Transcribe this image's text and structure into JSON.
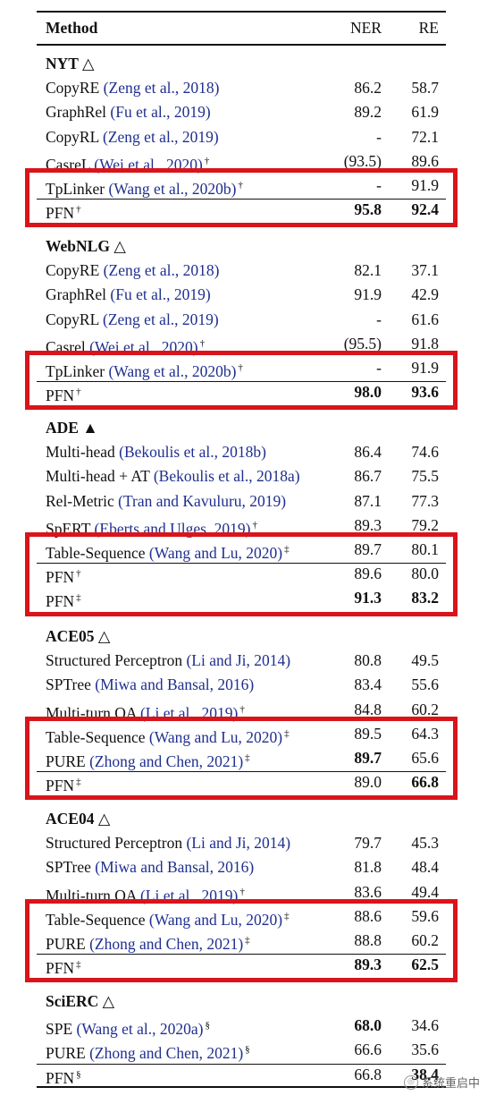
{
  "header": {
    "method": "Method",
    "ner": "NER",
    "re": "RE"
  },
  "sections": [
    {
      "title": "NYT",
      "marker": "△",
      "rows": [
        {
          "pre": "CopyRE",
          "cite": "(Zeng et al., 2018)",
          "sup": "",
          "ner": "86.2",
          "re": "58.7",
          "ner_bold": false,
          "re_bold": false
        },
        {
          "pre": "GraphRel",
          "cite": "(Fu et al., 2019)",
          "sup": "",
          "ner": "89.2",
          "re": "61.9",
          "ner_bold": false,
          "re_bold": false
        },
        {
          "pre": "CopyRL",
          "cite": "(Zeng et al., 2019)",
          "sup": "",
          "ner": "-",
          "re": "72.1",
          "ner_bold": false,
          "re_bold": false
        },
        {
          "pre": "CasreL",
          "cite": "(Wei et al., 2020)",
          "sup": "†",
          "ner": "(93.5)",
          "re": "89.6",
          "ner_bold": false,
          "re_bold": false
        },
        {
          "pre": "TpLinker",
          "cite": "(Wang et al., 2020b)",
          "sup": "†",
          "ner": "-",
          "re": "91.9",
          "ner_bold": false,
          "re_bold": false
        },
        {
          "pre": "PFN",
          "cite": "",
          "sup": "†",
          "ner": "95.8",
          "re": "92.4",
          "ner_bold": true,
          "re_bold": true
        }
      ]
    },
    {
      "title": "WebNLG",
      "marker": "△",
      "rows": [
        {
          "pre": "CopyRE",
          "cite": "(Zeng et al., 2018)",
          "sup": "",
          "ner": "82.1",
          "re": "37.1",
          "ner_bold": false,
          "re_bold": false
        },
        {
          "pre": "GraphRel",
          "cite": "(Fu et al., 2019)",
          "sup": "",
          "ner": "91.9",
          "re": "42.9",
          "ner_bold": false,
          "re_bold": false
        },
        {
          "pre": "CopyRL",
          "cite": "(Zeng et al., 2019)",
          "sup": "",
          "ner": "-",
          "re": "61.6",
          "ner_bold": false,
          "re_bold": false
        },
        {
          "pre": "Casrel",
          "cite": "(Wei et al., 2020)",
          "sup": "†",
          "ner": "(95.5)",
          "re": "91.8",
          "ner_bold": false,
          "re_bold": false
        },
        {
          "pre": "TpLinker",
          "cite": "(Wang et al., 2020b)",
          "sup": "†",
          "ner": "-",
          "re": "91.9",
          "ner_bold": false,
          "re_bold": false
        },
        {
          "pre": "PFN",
          "cite": "",
          "sup": "†",
          "ner": "98.0",
          "re": "93.6",
          "ner_bold": true,
          "re_bold": true
        }
      ]
    },
    {
      "title": "ADE",
      "marker": "▲",
      "rows": [
        {
          "pre": "Multi-head",
          "cite": "(Bekoulis et al., 2018b)",
          "sup": "",
          "ner": "86.4",
          "re": "74.6",
          "ner_bold": false,
          "re_bold": false
        },
        {
          "pre": "Multi-head + AT",
          "cite": "(Bekoulis et al., 2018a)",
          "sup": "",
          "ner": "86.7",
          "re": "75.5",
          "ner_bold": false,
          "re_bold": false
        },
        {
          "pre": "Rel-Metric",
          "cite": "(Tran and Kavuluru, 2019)",
          "sup": "",
          "ner": "87.1",
          "re": "77.3",
          "ner_bold": false,
          "re_bold": false
        },
        {
          "pre": "SpERT",
          "cite": "(Eberts and Ulges, 2019)",
          "sup": "†",
          "ner": "89.3",
          "re": "79.2",
          "ner_bold": false,
          "re_bold": false
        },
        {
          "pre": "Table-Sequence",
          "cite": "(Wang and Lu, 2020)",
          "sup": "‡",
          "ner": "89.7",
          "re": "80.1",
          "ner_bold": false,
          "re_bold": false
        },
        {
          "pre": "PFN",
          "cite": "",
          "sup": "†",
          "ner": "89.6",
          "re": "80.0",
          "ner_bold": false,
          "re_bold": false
        },
        {
          "pre": "PFN",
          "cite": "",
          "sup": "‡",
          "ner": "91.3",
          "re": "83.2",
          "ner_bold": true,
          "re_bold": true
        }
      ]
    },
    {
      "title": "ACE05",
      "marker": "△",
      "rows": [
        {
          "pre": "Structured Perceptron",
          "cite": "(Li and Ji, 2014)",
          "sup": "",
          "ner": "80.8",
          "re": "49.5",
          "ner_bold": false,
          "re_bold": false
        },
        {
          "pre": "SPTree",
          "cite": "(Miwa and Bansal, 2016)",
          "sup": "",
          "ner": "83.4",
          "re": "55.6",
          "ner_bold": false,
          "re_bold": false
        },
        {
          "pre": "Multi-turn QA",
          "cite": "(Li et al., 2019)",
          "sup": "†",
          "ner": "84.8",
          "re": "60.2",
          "ner_bold": false,
          "re_bold": false
        },
        {
          "pre": "Table-Sequence",
          "cite": "(Wang and Lu, 2020)",
          "sup": "‡",
          "ner": "89.5",
          "re": "64.3",
          "ner_bold": false,
          "re_bold": false
        },
        {
          "pre": "PURE",
          "cite": "(Zhong and Chen, 2021)",
          "sup": "‡",
          "ner": "89.7",
          "re": "65.6",
          "ner_bold": true,
          "re_bold": false
        },
        {
          "pre": "PFN",
          "cite": "",
          "sup": "‡",
          "ner": "89.0",
          "re": "66.8",
          "ner_bold": false,
          "re_bold": true
        }
      ]
    },
    {
      "title": "ACE04",
      "marker": "△",
      "rows": [
        {
          "pre": "Structured Perceptron",
          "cite": "(Li and Ji, 2014)",
          "sup": "",
          "ner": "79.7",
          "re": "45.3",
          "ner_bold": false,
          "re_bold": false
        },
        {
          "pre": "SPTree",
          "cite": "(Miwa and Bansal, 2016)",
          "sup": "",
          "ner": "81.8",
          "re": "48.4",
          "ner_bold": false,
          "re_bold": false
        },
        {
          "pre": "Multi-turn QA",
          "cite": "(Li et al., 2019)",
          "sup": "†",
          "ner": "83.6",
          "re": "49.4",
          "ner_bold": false,
          "re_bold": false
        },
        {
          "pre": "Table-Sequence",
          "cite": "(Wang and Lu, 2020)",
          "sup": "‡",
          "ner": "88.6",
          "re": "59.6",
          "ner_bold": false,
          "re_bold": false
        },
        {
          "pre": "PURE",
          "cite": "(Zhong and Chen, 2021)",
          "sup": "‡",
          "ner": "88.8",
          "re": "60.2",
          "ner_bold": false,
          "re_bold": false
        },
        {
          "pre": "PFN",
          "cite": "",
          "sup": "‡",
          "ner": "89.3",
          "re": "62.5",
          "ner_bold": true,
          "re_bold": true
        }
      ]
    },
    {
      "title": "SciERC",
      "marker": "△",
      "rows": [
        {
          "pre": "SPE",
          "cite": "(Wang et al., 2020a)",
          "sup": "§",
          "ner": "68.0",
          "re": "34.6",
          "ner_bold": true,
          "re_bold": false
        },
        {
          "pre": "PURE",
          "cite": "(Zhong and Chen, 2021)",
          "sup": "§",
          "ner": "66.6",
          "re": "35.6",
          "ner_bold": false,
          "re_bold": false
        },
        {
          "pre": "PFN",
          "cite": "",
          "sup": "§",
          "ner": "66.8",
          "re": "38.4",
          "ner_bold": false,
          "re_bold": true
        }
      ]
    }
  ],
  "highlight_color": "#d9141b",
  "citation_color": "#1f2f8f",
  "watermark": {
    "text": "系统重启中",
    "icon": "wechat-bubble-icon"
  }
}
